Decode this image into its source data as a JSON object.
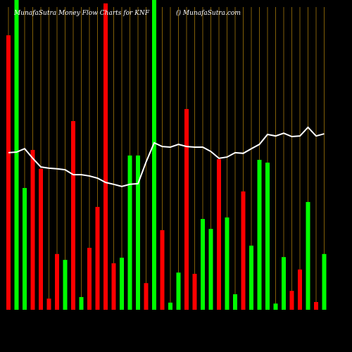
{
  "chart_data": {
    "type": "bar",
    "title": "MunafaSutra  Money  Flow  Charts for KNF",
    "subtitle": "() MunafaSutra.com",
    "ylim": [
      0,
      100
    ],
    "values": [
      88.6,
      100,
      39.3,
      51.6,
      45.5,
      3.6,
      18.0,
      16.1,
      60.9,
      4.1,
      20.0,
      33.2,
      98.9,
      15.0,
      16.8,
      49.8,
      49.8,
      8.6,
      100,
      25.7,
      2.3,
      12.0,
      64.8,
      11.6,
      29.3,
      26.1,
      48.6,
      29.8,
      5.0,
      38.2,
      20.7,
      48.4,
      47.5,
      2.0,
      17.0,
      6.1,
      13.0,
      34.8,
      2.5,
      18.0
    ],
    "colors": [
      "#ff0000",
      "#00ff00",
      "#00ff00",
      "#ff0000",
      "#ff0000",
      "#ff0000",
      "#ff0000",
      "#00ff00",
      "#ff0000",
      "#00ff00",
      "#ff0000",
      "#ff0000",
      "#ff0000",
      "#ff0000",
      "#00ff00",
      "#00ff00",
      "#00ff00",
      "#ff0000",
      "#00ff00",
      "#ff0000",
      "#00ff00",
      "#00ff00",
      "#ff0000",
      "#ff0000",
      "#00ff00",
      "#00ff00",
      "#ff0000",
      "#00ff00",
      "#00ff00",
      "#ff0000",
      "#00ff00",
      "#00ff00",
      "#00ff00",
      "#00ff00",
      "#00ff00",
      "#ff0000",
      "#ff0000",
      "#00ff00",
      "#ff0000",
      "#00ff00"
    ],
    "line_values": [
      50.7,
      50.9,
      52.0,
      48.9,
      46.1,
      45.7,
      45.5,
      45.2,
      43.6,
      43.6,
      43.2,
      42.5,
      41.1,
      40.5,
      39.8,
      40.5,
      40.7,
      47.7,
      53.9,
      52.7,
      52.5,
      53.4,
      52.7,
      52.5,
      52.5,
      51.1,
      48.9,
      49.3,
      50.7,
      50.5,
      52.0,
      53.4,
      56.6,
      56.1,
      57.0,
      55.9,
      56.1,
      58.9,
      56.1,
      56.8
    ],
    "line_color": "#ffffff",
    "grid_color": "#b8860b"
  }
}
